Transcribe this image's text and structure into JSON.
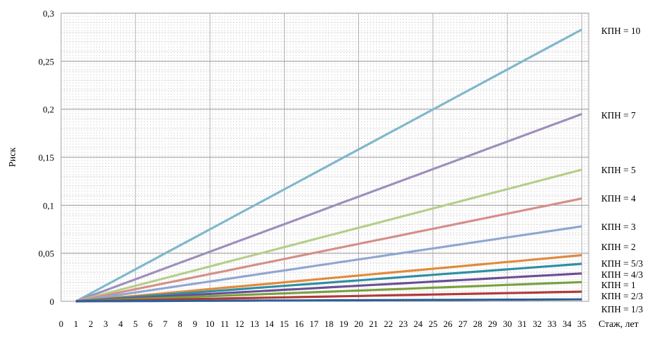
{
  "chart_data": {
    "type": "line",
    "title": "",
    "xlabel": "Стаж, лет",
    "ylabel": "Риск",
    "x": [
      0,
      1,
      2,
      3,
      4,
      5,
      6,
      7,
      8,
      9,
      10,
      11,
      12,
      13,
      14,
      15,
      16,
      17,
      18,
      19,
      20,
      21,
      22,
      23,
      24,
      25,
      26,
      27,
      28,
      29,
      30,
      31,
      32,
      33,
      34,
      35
    ],
    "xlim": [
      0,
      35
    ],
    "ylim": [
      0,
      0.3
    ],
    "y_ticks": [
      "0",
      "0,05",
      "0,1",
      "0,15",
      "0,2",
      "0,25",
      "0,3"
    ],
    "y_tick_values": [
      0,
      0.05,
      0.1,
      0.15,
      0.2,
      0.25,
      0.3
    ],
    "grid": true,
    "legend": "right, labels at line ends",
    "series": [
      {
        "name": "КПН = 10",
        "color": "#7fb7cb",
        "start": 1,
        "end_value": 0.283
      },
      {
        "name": "КПН = 7",
        "color": "#9d8fbb",
        "start": 1,
        "end_value": 0.195
      },
      {
        "name": "КПН = 5",
        "color": "#b4cf8a",
        "start": 1,
        "end_value": 0.137
      },
      {
        "name": "КПН = 4",
        "color": "#d48f8a",
        "start": 1,
        "end_value": 0.107
      },
      {
        "name": "КПН = 3",
        "color": "#8fa6d0",
        "start": 1,
        "end_value": 0.078
      },
      {
        "name": "КПН = 2",
        "color": "#e08a3c",
        "start": 1,
        "end_value": 0.048
      },
      {
        "name": "КПН = 5/3",
        "color": "#2f8fa3",
        "start": 1,
        "end_value": 0.039
      },
      {
        "name": "КПН = 4/3",
        "color": "#6a4f93",
        "start": 1,
        "end_value": 0.029
      },
      {
        "name": "КПН = 1",
        "color": "#7aa03e",
        "start": 1,
        "end_value": 0.02
      },
      {
        "name": "КПН = 2/3",
        "color": "#b13a38",
        "start": 1,
        "end_value": 0.01
      },
      {
        "name": "КПН = 1/3",
        "color": "#2f5f98",
        "start": 1,
        "end_value": 0.002
      }
    ]
  }
}
